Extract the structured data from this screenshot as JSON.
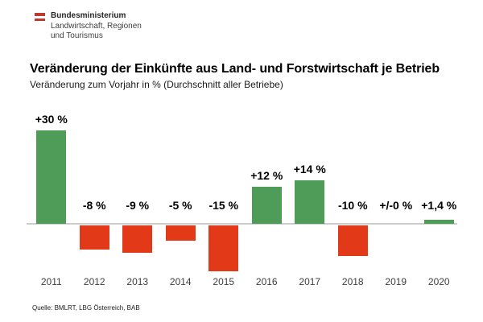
{
  "header": {
    "ministry": "Bundesministerium",
    "department_line1": "Landwirtschaft, Regionen",
    "department_line2": "und Tourismus",
    "flag_red": "#bf3a2e"
  },
  "chart_data": {
    "type": "bar",
    "title": "Veränderung der Einkünfte aus Land- und Forstwirtschaft je Betrieb",
    "subtitle": "Veränderung zum Vorjahr in % (Durchschnitt aller Betriebe)",
    "categories": [
      "2011",
      "2012",
      "2013",
      "2014",
      "2015",
      "2016",
      "2017",
      "2018",
      "2019",
      "2020"
    ],
    "values": [
      30,
      -8,
      -9,
      -5,
      -15,
      12,
      14,
      -10,
      0,
      1.4
    ],
    "labels": [
      "+30 %",
      "-8 %",
      "-9 %",
      "-5 %",
      "-15 %",
      "+12 %",
      "+14 %",
      "-10 %",
      "+/-0 %",
      "+1,4 %"
    ],
    "ylabel": "Veränderung zum Vorjahr in %",
    "ylim": [
      -17,
      32
    ],
    "grid": false,
    "legend": false,
    "colors": {
      "positive": "#4f9b58",
      "negative": "#e23a18",
      "axis_line": "#cdcdcb"
    }
  },
  "footer": {
    "source": "Quelle: BMLRT, LBG Österreich, BAB"
  }
}
